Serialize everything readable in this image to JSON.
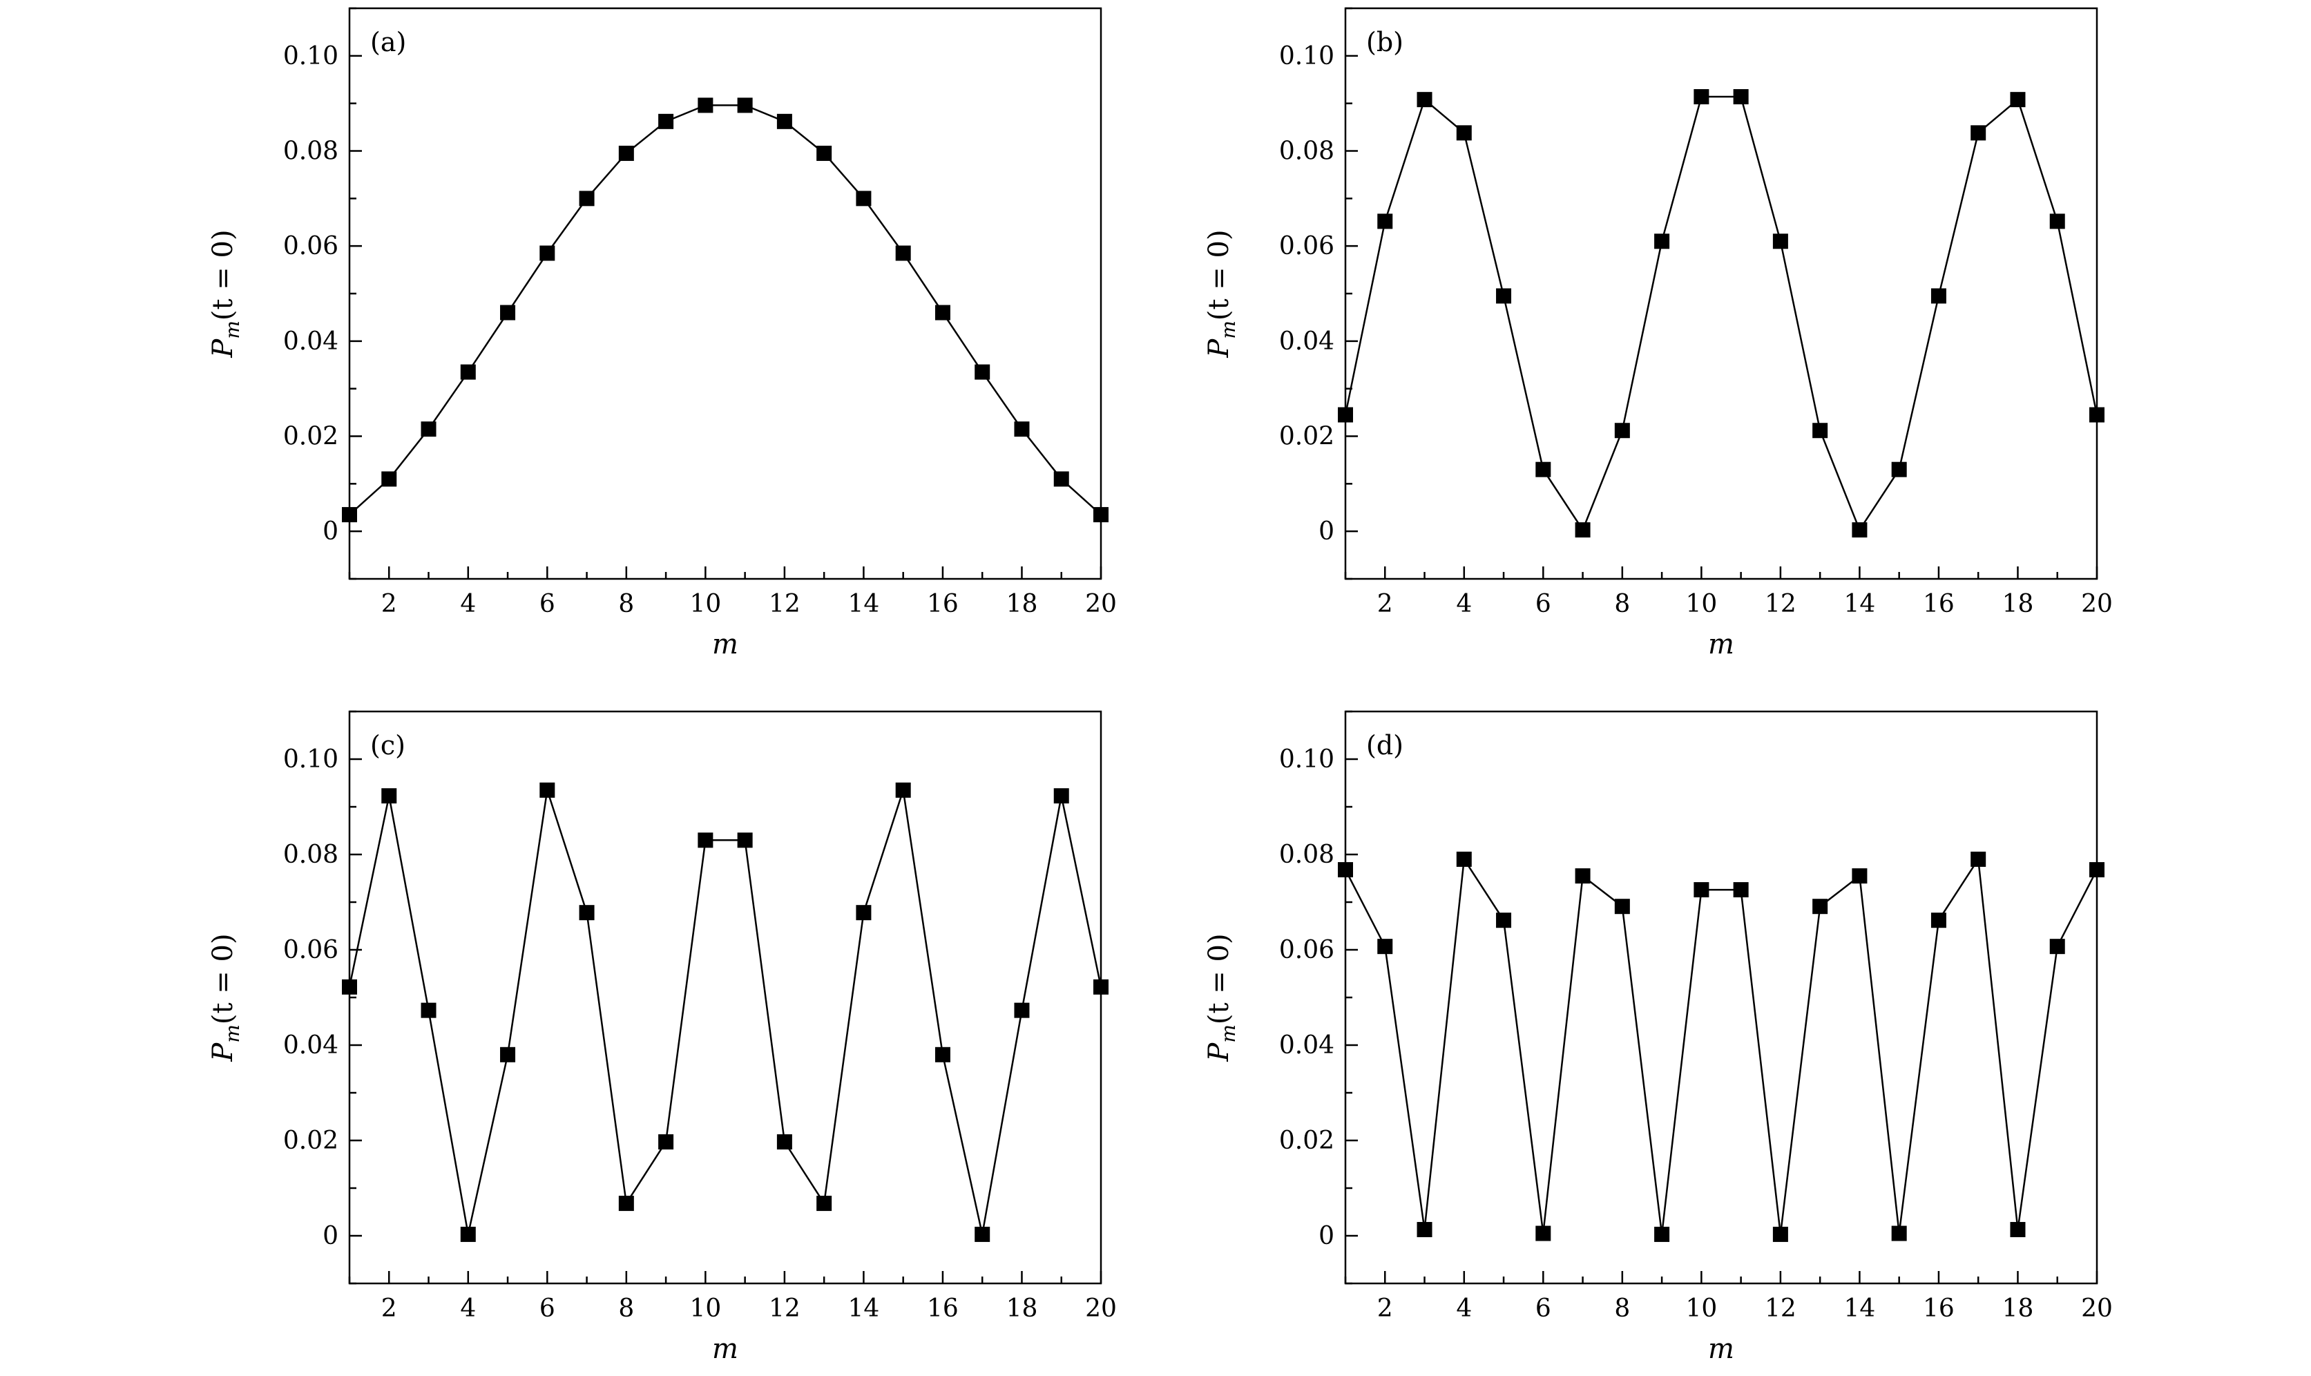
{
  "chart_data": [
    {
      "type": "line",
      "panel_label": "(a)",
      "xlabel": "m",
      "ylabel_main": "P",
      "ylabel_sub": "m",
      "ylabel_rest": "(t = 0)",
      "xlim": [
        1,
        20
      ],
      "ylim": [
        -0.01,
        0.11
      ],
      "xticks": [
        2,
        4,
        6,
        8,
        10,
        12,
        14,
        16,
        18,
        20
      ],
      "xtick_labels": [
        "2",
        "4",
        "6",
        "8",
        "10",
        "12",
        "14",
        "16",
        "18",
        "20"
      ],
      "yticks": [
        0,
        0.02,
        0.04,
        0.06,
        0.08,
        0.1
      ],
      "ytick_labels": [
        "0",
        "0.02",
        "0.04",
        "0.06",
        "0.08",
        "0.10"
      ],
      "x": [
        1,
        2,
        3,
        4,
        5,
        6,
        7,
        8,
        9,
        10,
        11,
        12,
        13,
        14,
        15,
        16,
        17,
        18,
        19,
        20
      ],
      "values": [
        0.0035,
        0.011,
        0.0215,
        0.0335,
        0.046,
        0.0585,
        0.07,
        0.0795,
        0.0862,
        0.0896,
        0.0896,
        0.0862,
        0.0795,
        0.07,
        0.0585,
        0.046,
        0.0335,
        0.0215,
        0.011,
        0.0035
      ]
    },
    {
      "type": "line",
      "panel_label": "(b)",
      "xlabel": "m",
      "ylabel_main": "P",
      "ylabel_sub": "m",
      "ylabel_rest": "(t = 0)",
      "xlim": [
        1,
        20
      ],
      "ylim": [
        -0.01,
        0.11
      ],
      "xticks": [
        2,
        4,
        6,
        8,
        10,
        12,
        14,
        16,
        18,
        20
      ],
      "xtick_labels": [
        "2",
        "4",
        "6",
        "8",
        "10",
        "12",
        "14",
        "16",
        "18",
        "20"
      ],
      "yticks": [
        0,
        0.02,
        0.04,
        0.06,
        0.08,
        0.1
      ],
      "ytick_labels": [
        "0",
        "0.02",
        "0.04",
        "0.06",
        "0.08",
        "0.10"
      ],
      "x": [
        1,
        2,
        3,
        4,
        5,
        6,
        7,
        8,
        9,
        10,
        11,
        12,
        13,
        14,
        15,
        16,
        17,
        18,
        19,
        20
      ],
      "values": [
        0.0245,
        0.0652,
        0.0908,
        0.0838,
        0.0495,
        0.013,
        0.0003,
        0.0212,
        0.061,
        0.0914,
        0.0914,
        0.061,
        0.0212,
        0.0003,
        0.013,
        0.0495,
        0.0838,
        0.0908,
        0.0652,
        0.0245
      ]
    },
    {
      "type": "line",
      "panel_label": "(c)",
      "xlabel": "m",
      "ylabel_main": "P",
      "ylabel_sub": "m",
      "ylabel_rest": "(t = 0)",
      "xlim": [
        1,
        20
      ],
      "ylim": [
        -0.01,
        0.11
      ],
      "xticks": [
        2,
        4,
        6,
        8,
        10,
        12,
        14,
        16,
        18,
        20
      ],
      "xtick_labels": [
        "2",
        "4",
        "6",
        "8",
        "10",
        "12",
        "14",
        "16",
        "18",
        "20"
      ],
      "yticks": [
        0,
        0.02,
        0.04,
        0.06,
        0.08,
        0.1
      ],
      "ytick_labels": [
        "0",
        "0.02",
        "0.04",
        "0.06",
        "0.08",
        "0.10"
      ],
      "x": [
        1,
        2,
        3,
        4,
        5,
        6,
        7,
        8,
        9,
        10,
        11,
        12,
        13,
        14,
        15,
        16,
        17,
        18,
        19,
        20
      ],
      "values": [
        0.0522,
        0.0923,
        0.0473,
        0.0003,
        0.038,
        0.0935,
        0.0678,
        0.0068,
        0.0197,
        0.083,
        0.083,
        0.0197,
        0.0068,
        0.0678,
        0.0935,
        0.038,
        0.0003,
        0.0473,
        0.0923,
        0.0522
      ]
    },
    {
      "type": "line",
      "panel_label": "(d)",
      "xlabel": "m",
      "ylabel_main": "P",
      "ylabel_sub": "m",
      "ylabel_rest": "(t = 0)",
      "xlim": [
        1,
        20
      ],
      "ylim": [
        -0.01,
        0.11
      ],
      "xticks": [
        2,
        4,
        6,
        8,
        10,
        12,
        14,
        16,
        18,
        20
      ],
      "xtick_labels": [
        "2",
        "4",
        "6",
        "8",
        "10",
        "12",
        "14",
        "16",
        "18",
        "20"
      ],
      "yticks": [
        0,
        0.02,
        0.04,
        0.06,
        0.08,
        0.1
      ],
      "ytick_labels": [
        "0",
        "0.02",
        "0.04",
        "0.06",
        "0.08",
        "0.10"
      ],
      "x": [
        1,
        2,
        3,
        4,
        5,
        6,
        7,
        8,
        9,
        10,
        11,
        12,
        13,
        14,
        15,
        16,
        17,
        18,
        19,
        20
      ],
      "values": [
        0.0768,
        0.0607,
        0.0013,
        0.079,
        0.0662,
        0.0005,
        0.0755,
        0.0691,
        0.0003,
        0.0726,
        0.0726,
        0.0003,
        0.0691,
        0.0755,
        0.0005,
        0.0662,
        0.079,
        0.0013,
        0.0607,
        0.0768
      ]
    }
  ]
}
